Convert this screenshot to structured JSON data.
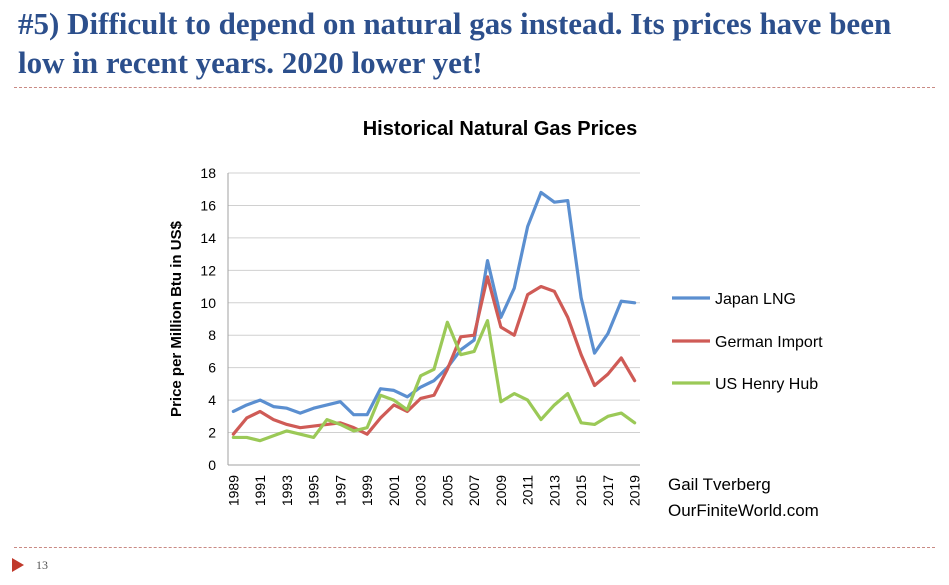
{
  "slide": {
    "title": "#5) Difficult to depend on natural gas instead. Its prices have been low in recent years. 2020 lower yet!",
    "page_number": "13"
  },
  "colors": {
    "title": "#2c4f8c",
    "divider": "#c98a84",
    "footer_arrow": "#c0392b"
  },
  "chart_data": {
    "type": "line",
    "title": "Historical Natural Gas Prices",
    "xlabel": "",
    "ylabel": "Price per Million Btu in US$",
    "x": [
      1989,
      1990,
      1991,
      1992,
      1993,
      1994,
      1995,
      1996,
      1997,
      1998,
      1999,
      2000,
      2001,
      2002,
      2003,
      2004,
      2005,
      2006,
      2007,
      2008,
      2009,
      2010,
      2011,
      2012,
      2013,
      2014,
      2015,
      2016,
      2017,
      2018,
      2019
    ],
    "x_tick_labels": [
      "1989",
      "1991",
      "1993",
      "1995",
      "1997",
      "1999",
      "2001",
      "2003",
      "2005",
      "2007",
      "2009",
      "2011",
      "2013",
      "2015",
      "2017",
      "2019"
    ],
    "ylim": [
      0,
      18
    ],
    "y_ticks": [
      0,
      2,
      4,
      6,
      8,
      10,
      12,
      14,
      16,
      18
    ],
    "grid": "horizontal",
    "legend_position": "right",
    "series": [
      {
        "name": "Japan LNG",
        "color": "#5b8fd0",
        "values": [
          3.3,
          3.7,
          4.0,
          3.6,
          3.5,
          3.2,
          3.5,
          3.7,
          3.9,
          3.1,
          3.1,
          4.7,
          4.6,
          4.2,
          4.8,
          5.2,
          6.0,
          7.1,
          7.7,
          12.6,
          9.1,
          10.9,
          14.7,
          16.8,
          16.2,
          16.3,
          10.3,
          6.9,
          8.1,
          10.1,
          10.0
        ]
      },
      {
        "name": "German Import",
        "color": "#cf5b56",
        "values": [
          1.9,
          2.9,
          3.3,
          2.8,
          2.5,
          2.3,
          2.4,
          2.5,
          2.6,
          2.3,
          1.9,
          2.9,
          3.7,
          3.3,
          4.1,
          4.3,
          5.9,
          7.9,
          8.0,
          11.6,
          8.5,
          8.0,
          10.5,
          11.0,
          10.7,
          9.1,
          6.8,
          4.9,
          5.6,
          6.6,
          5.2
        ]
      },
      {
        "name": "US Henry Hub",
        "color": "#9bc957",
        "values": [
          1.7,
          1.7,
          1.5,
          1.8,
          2.1,
          1.9,
          1.7,
          2.8,
          2.5,
          2.1,
          2.3,
          4.3,
          4.0,
          3.4,
          5.5,
          5.9,
          8.8,
          6.8,
          7.0,
          8.9,
          3.9,
          4.4,
          4.0,
          2.8,
          3.7,
          4.4,
          2.6,
          2.5,
          3.0,
          3.2,
          2.6
        ]
      }
    ],
    "annotation": [
      "Gail Tverberg",
      "OurFiniteWorld.com"
    ]
  }
}
